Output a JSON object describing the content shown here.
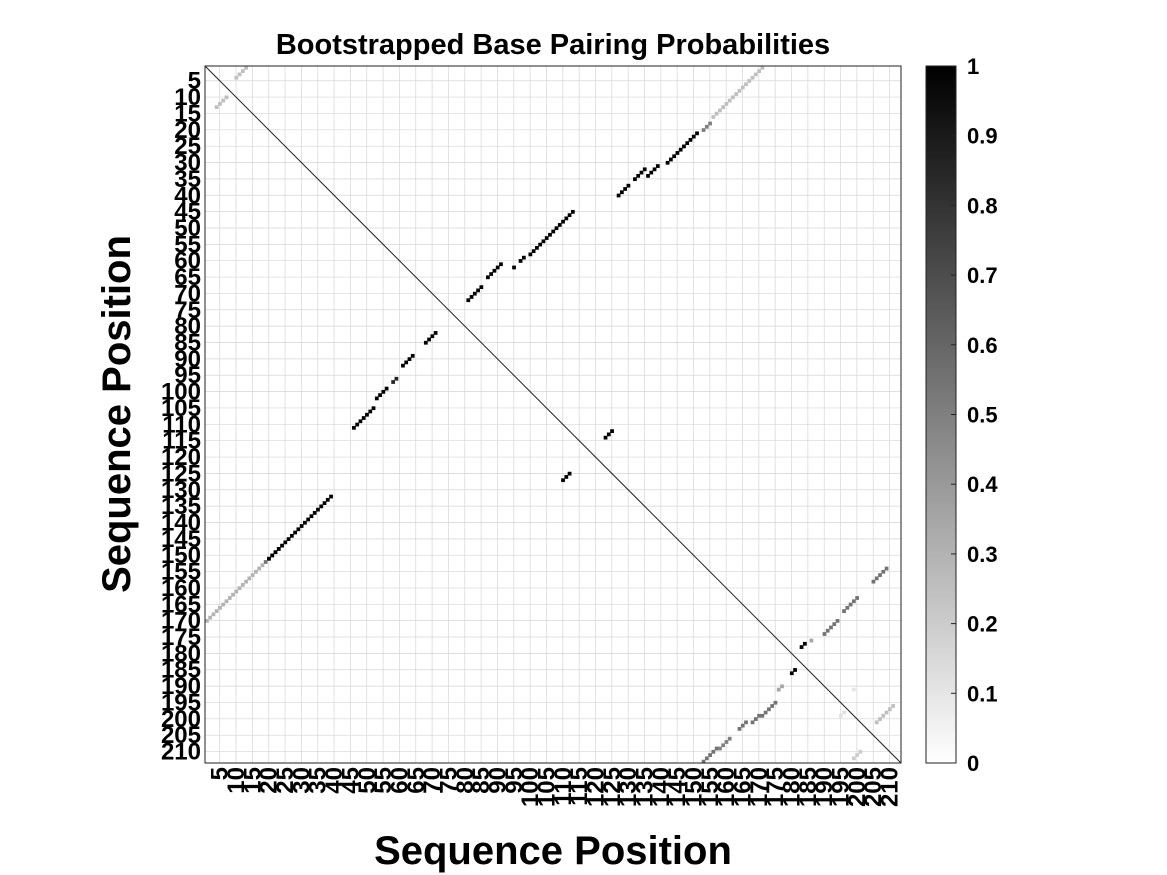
{
  "chart_data": {
    "type": "heatmap",
    "title": "Bootstrapped Base Pairing Probabilities",
    "xlabel": "Sequence Position",
    "ylabel": "Sequence Position",
    "n": 213,
    "xlim": [
      1,
      213
    ],
    "ylim": [
      1,
      213
    ],
    "x_ticks": [
      5,
      10,
      15,
      20,
      25,
      30,
      35,
      40,
      45,
      50,
      55,
      60,
      65,
      70,
      75,
      80,
      85,
      90,
      95,
      100,
      105,
      110,
      115,
      120,
      125,
      130,
      135,
      140,
      145,
      150,
      155,
      160,
      165,
      170,
      175,
      180,
      185,
      190,
      195,
      200,
      205,
      210
    ],
    "y_ticks": [
      5,
      10,
      15,
      20,
      25,
      30,
      35,
      40,
      45,
      50,
      55,
      60,
      65,
      70,
      75,
      80,
      85,
      90,
      95,
      100,
      105,
      110,
      115,
      120,
      125,
      130,
      135,
      140,
      145,
      150,
      155,
      160,
      165,
      170,
      175,
      180,
      185,
      190,
      195,
      200,
      205,
      210
    ],
    "x_tick_labels": [
      "5",
      "10",
      "15",
      "20",
      "25",
      "30",
      "35",
      "40",
      "45",
      "50",
      "55",
      "60",
      "65",
      "70",
      "75",
      "80",
      "85",
      "90",
      "95",
      "100",
      "105",
      "110",
      "115",
      "120",
      "125",
      "130",
      "135",
      "140",
      "145",
      "150",
      "155",
      "160",
      "165",
      "170",
      "175",
      "180",
      "185",
      "190",
      "195",
      "200",
      "205",
      "210"
    ],
    "y_tick_labels": [
      "5",
      "10",
      "15",
      "20",
      "25",
      "30",
      "35",
      "40",
      "45",
      "50",
      "55",
      "60",
      "65",
      "70",
      "75",
      "80",
      "85",
      "90",
      "95",
      "100",
      "105",
      "110",
      "115",
      "120",
      "125",
      "130",
      "135",
      "140",
      "145",
      "150",
      "155",
      "160",
      "165",
      "170",
      "175",
      "180",
      "185",
      "190",
      "195",
      "200",
      "205",
      "210"
    ],
    "grid": true,
    "diagonal_line": true,
    "colormap": "gray-reversed",
    "colorbar": {
      "range": [
        0,
        1
      ],
      "ticks": [
        0,
        0.1,
        0.2,
        0.3,
        0.4,
        0.5,
        0.6,
        0.7,
        0.8,
        0.9,
        1
      ],
      "tick_labels": [
        "0",
        "0.1",
        "0.2",
        "0.3",
        "0.4",
        "0.5",
        "0.6",
        "0.7",
        "0.8",
        "0.9",
        "1"
      ],
      "placement": "right"
    },
    "helices": [
      {
        "i_start": 1,
        "j_start": 170,
        "length": 18,
        "p": 0.3
      },
      {
        "i_start": 19,
        "j_start": 152,
        "length": 5,
        "p": 0.55
      },
      {
        "i_start": 20,
        "j_start": 151,
        "length": 20,
        "p": 1.0
      },
      {
        "i_start": 46,
        "j_start": 111,
        "length": 7,
        "p": 1.0
      },
      {
        "i_start": 53,
        "j_start": 102,
        "length": 4,
        "p": 1.0
      },
      {
        "i_start": 58,
        "j_start": 97,
        "length": 2,
        "p": 0.85
      },
      {
        "i_start": 61,
        "j_start": 92,
        "length": 4,
        "p": 1.0
      },
      {
        "i_start": 68,
        "j_start": 85,
        "length": 4,
        "p": 1.0
      },
      {
        "i_start": 81,
        "j_start": 72,
        "length": 5,
        "p": 1.0
      },
      {
        "i_start": 87,
        "j_start": 65,
        "length": 5,
        "p": 1.0
      },
      {
        "i_start": 95,
        "j_start": 62,
        "length": 1,
        "p": 1.0
      },
      {
        "i_start": 97,
        "j_start": 60,
        "length": 2,
        "p": 1.0
      },
      {
        "i_start": 100,
        "j_start": 58,
        "length": 14,
        "p": 1.0
      },
      {
        "i_start": 110,
        "j_start": 127,
        "length": 3,
        "p": 1.0
      },
      {
        "i_start": 123,
        "j_start": 114,
        "length": 3,
        "p": 1.0
      },
      {
        "i_start": 127,
        "j_start": 40,
        "length": 4,
        "p": 1.0
      },
      {
        "i_start": 132,
        "j_start": 35,
        "length": 4,
        "p": 1.0
      },
      {
        "i_start": 136,
        "j_start": 34,
        "length": 4,
        "p": 1.0
      },
      {
        "i_start": 142,
        "j_start": 30,
        "length": 4,
        "p": 1.0
      },
      {
        "i_start": 146,
        "j_start": 26,
        "length": 6,
        "p": 1.0
      },
      {
        "i_start": 153,
        "j_start": 20,
        "length": 3,
        "p": 0.5
      },
      {
        "i_start": 156,
        "j_start": 16,
        "length": 17,
        "p": 0.25
      },
      {
        "i_start": 153,
        "j_start": 213,
        "length": 5,
        "p": 0.55
      },
      {
        "i_start": 158,
        "j_start": 209,
        "length": 4,
        "p": 0.5
      },
      {
        "i_start": 164,
        "j_start": 203,
        "length": 3,
        "p": 0.55
      },
      {
        "i_start": 168,
        "j_start": 201,
        "length": 3,
        "p": 0.55
      },
      {
        "i_start": 171,
        "j_start": 199,
        "length": 5,
        "p": 0.55
      },
      {
        "i_start": 176,
        "j_start": 191,
        "length": 2,
        "p": 0.35
      },
      {
        "i_start": 180,
        "j_start": 186,
        "length": 2,
        "p": 1.0
      },
      {
        "i_start": 183,
        "j_start": 178,
        "length": 2,
        "p": 1.0
      },
      {
        "i_start": 186,
        "j_start": 176,
        "length": 1,
        "p": 0.35
      },
      {
        "i_start": 190,
        "j_start": 174,
        "length": 5,
        "p": 0.55
      },
      {
        "i_start": 196,
        "j_start": 167,
        "length": 5,
        "p": 0.55
      },
      {
        "i_start": 205,
        "j_start": 158,
        "length": 5,
        "p": 0.55
      },
      {
        "i_start": 195,
        "j_start": 199,
        "length": 2,
        "p": 0.12
      },
      {
        "i_start": 199,
        "j_start": 191,
        "length": 1,
        "p": 0.1
      },
      {
        "i_start": 199,
        "j_start": 212,
        "length": 3,
        "p": 0.2
      },
      {
        "i_start": 206,
        "j_start": 201,
        "length": 6,
        "p": 0.25
      },
      {
        "i_start": 10,
        "j_start": 4,
        "length": 4,
        "p": 0.25
      },
      {
        "i_start": 4,
        "j_start": 13,
        "length": 4,
        "p": 0.25
      }
    ]
  }
}
